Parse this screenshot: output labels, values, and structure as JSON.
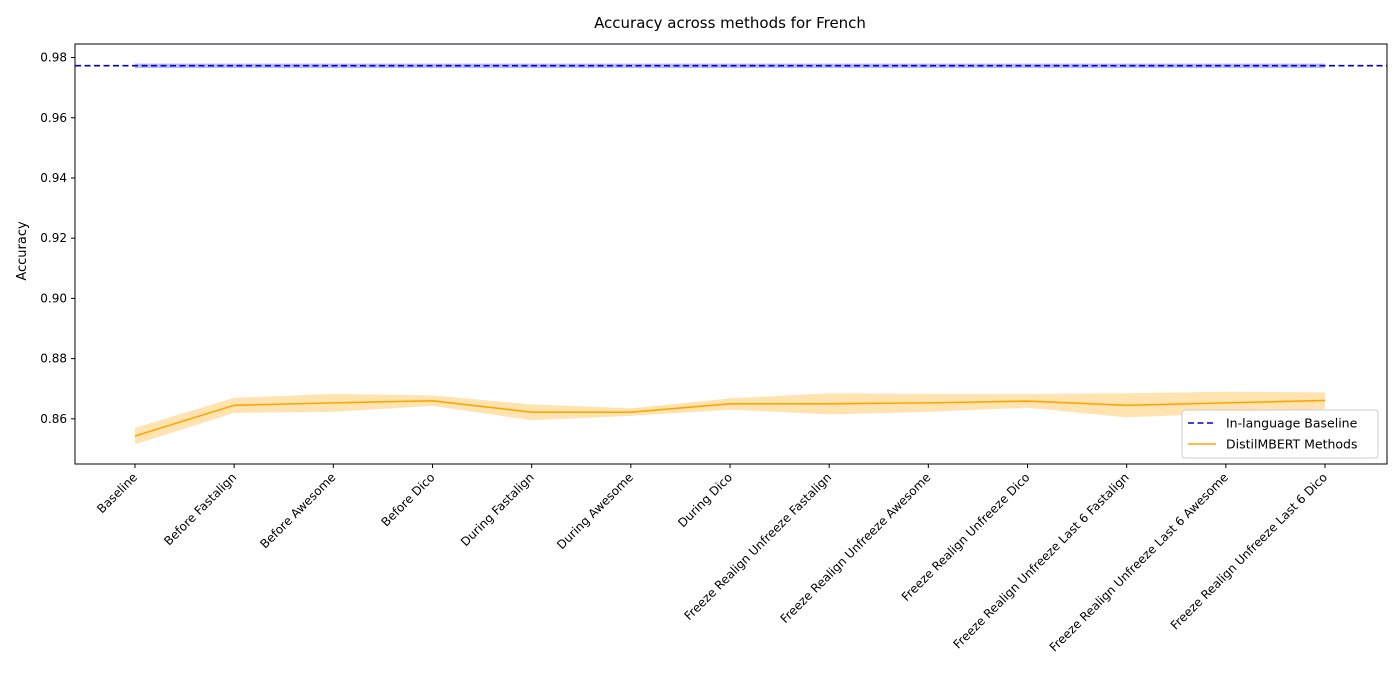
{
  "chart_data": {
    "type": "line",
    "title": "Accuracy across methods for French",
    "xlabel": "",
    "ylabel": "Accuracy",
    "ylim": [
      0.845,
      0.9845
    ],
    "yticks": [
      0.86,
      0.88,
      0.9,
      0.92,
      0.94,
      0.96,
      0.98
    ],
    "ytick_labels": [
      "0.86",
      "0.88",
      "0.90",
      "0.92",
      "0.94",
      "0.96",
      "0.98"
    ],
    "grid": false,
    "legend_position": "lower right",
    "categories": [
      "Baseline",
      "Before Fastalign",
      "Before Awesome",
      "Before Dico",
      "During Fastalign",
      "During Awesome",
      "During Dico",
      "Freeze Realign Unfreeze Fastalign",
      "Freeze Realign Unfreeze Awesome",
      "Freeze Realign Unfreeze Dico",
      "Freeze Realign Unfreeze Last 6 Fastalign",
      "Freeze Realign Unfreeze Last 6 Awesome",
      "Freeze Realign Unfreeze Last 6 Dico"
    ],
    "reference_line": {
      "name": "In-language Baseline",
      "value": 0.9773,
      "lower": 0.9765,
      "upper": 0.978,
      "color": "#0000cc",
      "band_color": "#6666ff",
      "style": "dashed"
    },
    "series": [
      {
        "name": "DistilMBERT Methods",
        "color": "#ffa500",
        "band_color": "#ffa500",
        "values": [
          0.8543,
          0.8645,
          0.8653,
          0.866,
          0.8622,
          0.8622,
          0.865,
          0.865,
          0.8653,
          0.8659,
          0.8645,
          0.8653,
          0.8661
        ],
        "lower": [
          0.8515,
          0.862,
          0.8623,
          0.8643,
          0.8595,
          0.861,
          0.863,
          0.8615,
          0.8623,
          0.8637,
          0.8605,
          0.8618,
          0.8633
        ],
        "upper": [
          0.857,
          0.867,
          0.8683,
          0.8678,
          0.8648,
          0.8635,
          0.8668,
          0.8685,
          0.8683,
          0.8683,
          0.8685,
          0.869,
          0.8688
        ]
      }
    ]
  }
}
